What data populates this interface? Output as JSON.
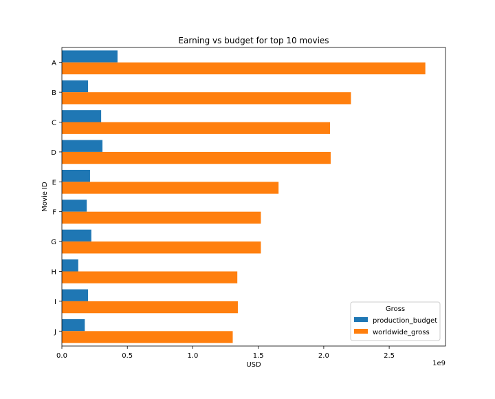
{
  "chart_data": {
    "type": "bar",
    "orientation": "horizontal",
    "title": "Earning vs budget for top 10 movies",
    "xlabel": "USD",
    "ylabel": "Movie ID",
    "x_offset_text": "1e9",
    "xlim": [
      0,
      2.93
    ],
    "xticks": [
      {
        "value": 0.0,
        "label": "0.0"
      },
      {
        "value": 0.5,
        "label": "0.5"
      },
      {
        "value": 1.0,
        "label": "1.0"
      },
      {
        "value": 1.5,
        "label": "1.5"
      },
      {
        "value": 2.0,
        "label": "2.0"
      },
      {
        "value": 2.5,
        "label": "2.5"
      }
    ],
    "categories": [
      "A",
      "B",
      "C",
      "D",
      "E",
      "F",
      "G",
      "H",
      "I",
      "J"
    ],
    "series": [
      {
        "name": "production_budget",
        "color": "#1f77b4",
        "values": [
          0.425,
          0.2,
          0.3,
          0.31,
          0.215,
          0.19,
          0.225,
          0.125,
          0.2,
          0.175
        ]
      },
      {
        "name": "worldwide_gross",
        "color": "#ff7f0e",
        "values": [
          2.776,
          2.208,
          2.048,
          2.053,
          1.655,
          1.52,
          1.52,
          1.34,
          1.344,
          1.305
        ]
      }
    ],
    "legend": {
      "title": "Gross",
      "placement": "lower-right"
    },
    "grid": false
  }
}
